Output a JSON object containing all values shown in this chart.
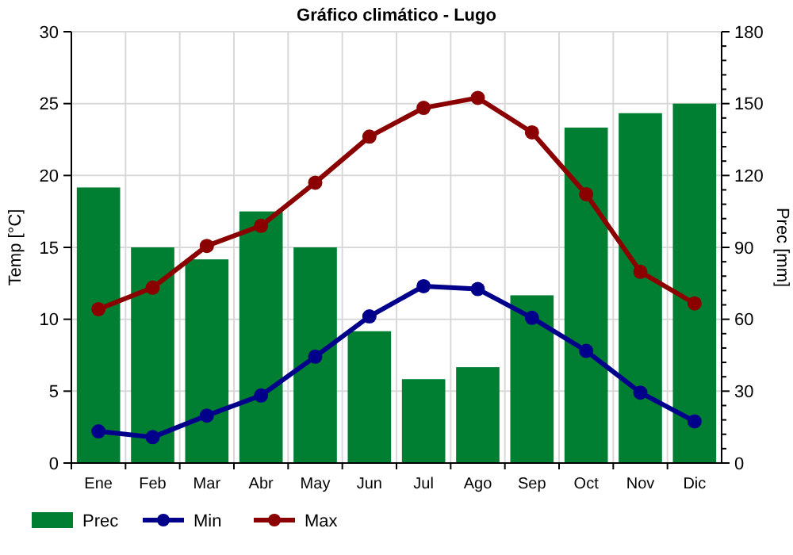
{
  "chart_data": {
    "type": "line",
    "title": "Gráfico climático - Lugo",
    "categories": [
      "Ene",
      "Feb",
      "Mar",
      "Abr",
      "May",
      "Jun",
      "Jul",
      "Ago",
      "Sep",
      "Oct",
      "Nov",
      "Dic"
    ],
    "series": [
      {
        "name": "Prec",
        "type": "bar",
        "axis": "y2",
        "color": "#007f32",
        "values": [
          115,
          90,
          85,
          105,
          90,
          55,
          35,
          40,
          70,
          140,
          146,
          150
        ]
      },
      {
        "name": "Min",
        "color": "#00008b",
        "values": [
          2.2,
          1.8,
          3.3,
          4.7,
          7.4,
          10.2,
          12.3,
          12.1,
          10.1,
          7.8,
          4.9,
          2.9
        ]
      },
      {
        "name": "Max",
        "color": "#8b0000",
        "values": [
          10.7,
          12.2,
          15.1,
          16.5,
          19.5,
          22.7,
          24.7,
          25.4,
          23.0,
          18.7,
          13.3,
          11.1
        ]
      }
    ],
    "ylabel": "Temp [°C]",
    "y2label": "Prec [mm]",
    "ylim": [
      0,
      30
    ],
    "yticks": [
      0,
      5,
      10,
      15,
      20,
      25,
      30
    ],
    "y2lim": [
      0,
      180
    ],
    "y2ticks": [
      0,
      {
        "value": 6,
        "label": null
      },
      {
        "value": 12,
        "label": null
      },
      {
        "value": 18,
        "label": null
      },
      {
        "value": 24,
        "label": null
      },
      30,
      {
        "value": 36,
        "label": null
      },
      {
        "value": 42,
        "label": null
      },
      {
        "value": 48,
        "label": null
      },
      {
        "value": 54,
        "label": null
      },
      60,
      {
        "value": 66,
        "label": null
      },
      {
        "value": 72,
        "label": null
      },
      {
        "value": 78,
        "label": null
      },
      {
        "value": 84,
        "label": null
      },
      90,
      {
        "value": 96,
        "label": null
      },
      {
        "value": 102,
        "label": null
      },
      {
        "value": 108,
        "label": null
      },
      {
        "value": 114,
        "label": null
      },
      120,
      {
        "value": 126,
        "label": null
      },
      {
        "value": 132,
        "label": null
      },
      {
        "value": 138,
        "label": null
      },
      {
        "value": 144,
        "label": null
      },
      150,
      {
        "value": 156,
        "label": null
      },
      {
        "value": 162,
        "label": null
      },
      {
        "value": 168,
        "label": null
      },
      {
        "value": 174,
        "label": null
      },
      180
    ],
    "grid": true,
    "legend": "bottom",
    "marker": "circle",
    "line_style": "solid"
  }
}
